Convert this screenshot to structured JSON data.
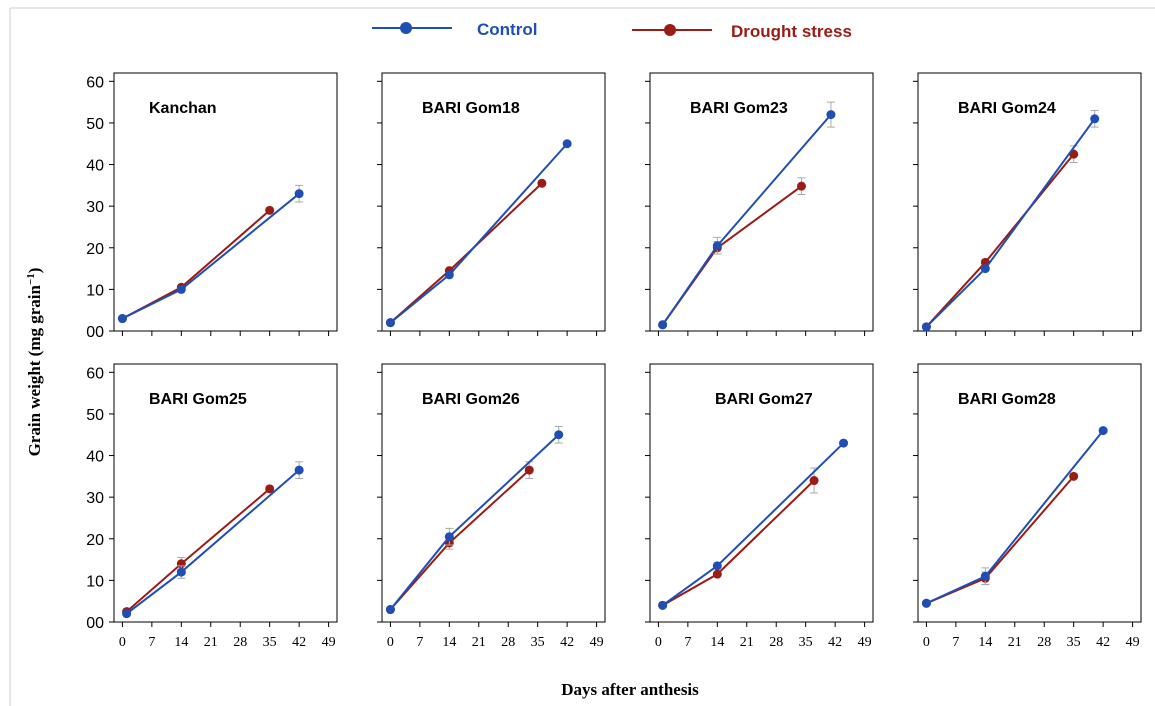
{
  "colors": {
    "control": "#1f4fb4",
    "drought": "#9b1c14",
    "error": "#a9a9a9",
    "axis": "#000000",
    "border": "#cccccc"
  },
  "legend": {
    "control_label": "Control",
    "drought_label": "Drought stress"
  },
  "axes": {
    "ylabel": "Grain weight (mg grain",
    "ylabel_sup": "−1",
    "ylabel_close": ")",
    "xlabel": "Days after anthesis",
    "x_ticks": [
      "0",
      "7",
      "14",
      "21",
      "28",
      "35",
      "42",
      "49"
    ],
    "y_ticks": [
      "00",
      "10",
      "20",
      "30",
      "40",
      "50",
      "60"
    ]
  },
  "chart_data": [
    {
      "type": "line",
      "title": "Kanchan",
      "xlim": [
        -2,
        51
      ],
      "ylim": [
        0,
        62
      ],
      "series": [
        {
          "name": "Control",
          "x": [
            0,
            14,
            42
          ],
          "y": [
            3,
            10,
            33
          ],
          "err": [
            0,
            0,
            2
          ]
        },
        {
          "name": "Drought stress",
          "x": [
            0,
            14,
            35
          ],
          "y": [
            3,
            10.5,
            29
          ],
          "err": [
            0,
            0,
            0
          ]
        }
      ]
    },
    {
      "type": "line",
      "title": "BARI Gom18",
      "xlim": [
        -2,
        51
      ],
      "ylim": [
        0,
        62
      ],
      "series": [
        {
          "name": "Control",
          "x": [
            0,
            14,
            42
          ],
          "y": [
            2,
            13.5,
            45
          ],
          "err": [
            0,
            0,
            0
          ]
        },
        {
          "name": "Drought stress",
          "x": [
            0,
            14,
            36
          ],
          "y": [
            2,
            14.5,
            35.5
          ],
          "err": [
            0,
            0,
            0
          ]
        }
      ]
    },
    {
      "type": "line",
      "title": "BARI Gom23",
      "xlim": [
        -2,
        51
      ],
      "ylim": [
        0,
        62
      ],
      "series": [
        {
          "name": "Control",
          "x": [
            1,
            14,
            41
          ],
          "y": [
            1.5,
            20.5,
            52
          ],
          "err": [
            0,
            2,
            3
          ]
        },
        {
          "name": "Drought stress",
          "x": [
            1,
            14,
            34
          ],
          "y": [
            1.5,
            20,
            34.8
          ],
          "err": [
            0,
            1.5,
            2
          ]
        }
      ]
    },
    {
      "type": "line",
      "title": "BARI Gom24",
      "xlim": [
        -2,
        51
      ],
      "ylim": [
        0,
        62
      ],
      "series": [
        {
          "name": "Control",
          "x": [
            0,
            14,
            40
          ],
          "y": [
            1,
            15,
            51
          ],
          "err": [
            0,
            0,
            2
          ]
        },
        {
          "name": "Drought stress",
          "x": [
            0,
            14,
            35
          ],
          "y": [
            1,
            16.5,
            42.5
          ],
          "err": [
            0,
            0,
            2
          ]
        }
      ]
    },
    {
      "type": "line",
      "title": "BARI Gom25",
      "xlim": [
        -2,
        51
      ],
      "ylim": [
        0,
        62
      ],
      "series": [
        {
          "name": "Control",
          "x": [
            1,
            14,
            42
          ],
          "y": [
            2,
            12,
            36.5
          ],
          "err": [
            0,
            1.5,
            2
          ]
        },
        {
          "name": "Drought stress",
          "x": [
            1,
            14,
            35
          ],
          "y": [
            2.5,
            14,
            32
          ],
          "err": [
            0,
            1.5,
            0
          ]
        }
      ]
    },
    {
      "type": "line",
      "title": "BARI Gom26",
      "xlim": [
        -2,
        51
      ],
      "ylim": [
        0,
        62
      ],
      "series": [
        {
          "name": "Control",
          "x": [
            0,
            14,
            40
          ],
          "y": [
            3,
            20.5,
            45
          ],
          "err": [
            0,
            2,
            2
          ]
        },
        {
          "name": "Drought stress",
          "x": [
            0,
            14,
            33
          ],
          "y": [
            3,
            19,
            36.5
          ],
          "err": [
            0,
            1.5,
            2
          ]
        }
      ]
    },
    {
      "type": "line",
      "title": "BARI Gom27",
      "xlim": [
        -2,
        51
      ],
      "ylim": [
        0,
        62
      ],
      "series": [
        {
          "name": "Control",
          "x": [
            1,
            14,
            44
          ],
          "y": [
            4,
            13.5,
            43
          ],
          "err": [
            0,
            0,
            0
          ]
        },
        {
          "name": "Drought stress",
          "x": [
            1,
            14,
            37
          ],
          "y": [
            4,
            11.5,
            34
          ],
          "err": [
            0,
            0,
            3
          ]
        }
      ]
    },
    {
      "type": "line",
      "title": "BARI Gom28",
      "xlim": [
        -2,
        51
      ],
      "ylim": [
        0,
        62
      ],
      "series": [
        {
          "name": "Control",
          "x": [
            0,
            14,
            42
          ],
          "y": [
            4.5,
            11,
            46
          ],
          "err": [
            0,
            2,
            0
          ]
        },
        {
          "name": "Drought stress",
          "x": [
            0,
            14,
            35
          ],
          "y": [
            4.5,
            10.5,
            35
          ],
          "err": [
            0,
            1.5,
            0
          ]
        }
      ]
    }
  ]
}
